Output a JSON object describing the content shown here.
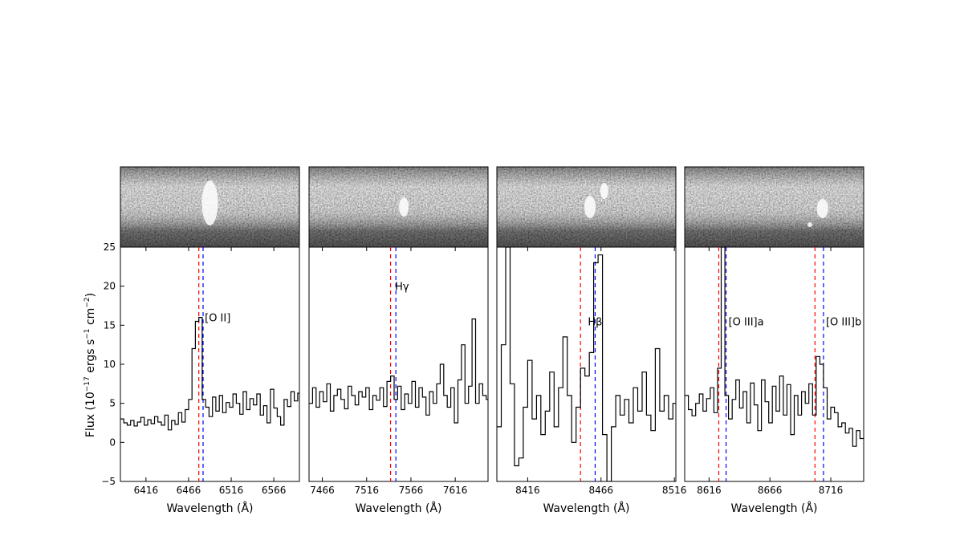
{
  "figure": {
    "ylabel": "Flux (10",
    "ylabel_exp": "−17",
    "ylabel_mid": " ergs s",
    "ylabel_exp2": "−1",
    "ylabel_mid2": " cm",
    "ylabel_exp3": "−2",
    "ylabel_end": ")"
  },
  "chart_data": [
    {
      "type": "line",
      "xlabel": "Wavelength (Å)",
      "ylabel": "Flux (10^-17 ergs s^-1 cm^-2)",
      "xlim": [
        6386,
        6596
      ],
      "ylim": [
        -5,
        25
      ],
      "xticks": [
        6416,
        6466,
        6516,
        6566
      ],
      "yticks": [
        -5,
        0,
        5,
        10,
        15,
        20,
        25
      ],
      "grid": false,
      "vlines": [
        {
          "x": 6478,
          "color": "#ff0000"
        },
        {
          "x": 6483,
          "color": "#0000ff"
        }
      ],
      "annotations": [
        {
          "text": "[O II]",
          "x": 6485,
          "y": 15.5
        }
      ],
      "x": [
        6386,
        6390,
        6394,
        6398,
        6402,
        6406,
        6410,
        6414,
        6418,
        6422,
        6426,
        6430,
        6434,
        6438,
        6442,
        6446,
        6450,
        6454,
        6458,
        6462,
        6466,
        6470,
        6474,
        6478,
        6482,
        6486,
        6490,
        6494,
        6498,
        6502,
        6506,
        6510,
        6514,
        6518,
        6522,
        6526,
        6530,
        6534,
        6538,
        6542,
        6546,
        6550,
        6554,
        6558,
        6562,
        6566,
        6570,
        6574,
        6578,
        6582,
        6586,
        6590,
        6594
      ],
      "y": [
        3,
        2.5,
        2.2,
        2.8,
        2.1,
        2.6,
        3.2,
        2.2,
        2.9,
        2.4,
        3.3,
        2.6,
        2.2,
        3.5,
        1.6,
        2.8,
        2.3,
        3.8,
        2.6,
        4.2,
        5.5,
        12,
        15.5,
        16,
        5.5,
        4.5,
        3.3,
        5.8,
        4,
        6,
        3.8,
        5.1,
        4.5,
        6.2,
        5,
        3.6,
        6.5,
        4.2,
        5.6,
        4.8,
        6.2,
        3.5,
        4.7,
        2.5,
        6.8,
        4.4,
        3.3,
        2.2,
        5.5,
        4.6,
        6.5,
        5.3,
        6.3
      ]
    },
    {
      "type": "line",
      "xlabel": "Wavelength (Å)",
      "xlim": [
        7451,
        7653
      ],
      "ylim": [
        -5,
        25
      ],
      "xticks": [
        7466,
        7516,
        7566,
        7616
      ],
      "grid": false,
      "vlines": [
        {
          "x": 7543,
          "color": "#ff0000"
        },
        {
          "x": 7549,
          "color": "#0000ff"
        }
      ],
      "annotations": [
        {
          "text": "Hγ",
          "x": 7548,
          "y": 19.5
        }
      ],
      "x": [
        7451,
        7455,
        7459,
        7463,
        7467,
        7471,
        7475,
        7479,
        7483,
        7487,
        7491,
        7495,
        7499,
        7503,
        7507,
        7511,
        7515,
        7519,
        7523,
        7527,
        7531,
        7535,
        7539,
        7543,
        7547,
        7551,
        7555,
        7559,
        7563,
        7567,
        7571,
        7575,
        7579,
        7583,
        7587,
        7591,
        7595,
        7599,
        7603,
        7607,
        7611,
        7615,
        7619,
        7623,
        7627,
        7631,
        7635,
        7639,
        7643,
        7647,
        7651
      ],
      "y": [
        5,
        7,
        4.5,
        6.5,
        5.2,
        7.5,
        4,
        6,
        6.8,
        5.5,
        4.3,
        7.2,
        6,
        4.8,
        6.5,
        5.8,
        7,
        4.2,
        6,
        5.4,
        7,
        4.6,
        7.8,
        8.5,
        5.5,
        7.2,
        4.2,
        6.2,
        5,
        7.8,
        4.5,
        7,
        5.8,
        3.5,
        6.5,
        5,
        7.5,
        10,
        6,
        4.5,
        7,
        2.5,
        8,
        12.5,
        5,
        7.2,
        15.8,
        5,
        7.5,
        6,
        5.5
      ]
    },
    {
      "type": "line",
      "xlabel": "Wavelength (Å)",
      "xlim": [
        8395,
        8517
      ],
      "ylim": [
        -5,
        25
      ],
      "xticks": [
        8416,
        8466,
        8516
      ],
      "grid": false,
      "vlines": [
        {
          "x": 8452,
          "color": "#ff0000"
        },
        {
          "x": 8462,
          "color": "#0000ff"
        }
      ],
      "annotations": [
        {
          "text": "Hβ",
          "x": 8457,
          "y": 15
        }
      ],
      "x": [
        8395,
        8398,
        8401,
        8404,
        8407,
        8410,
        8413,
        8416,
        8419,
        8422,
        8425,
        8428,
        8431,
        8434,
        8437,
        8440,
        8443,
        8446,
        8449,
        8452,
        8455,
        8458,
        8461,
        8464,
        8467,
        8470,
        8473,
        8476,
        8479,
        8482,
        8485,
        8488,
        8491,
        8494,
        8497,
        8500,
        8503,
        8506,
        8509,
        8512,
        8515
      ],
      "y": [
        2,
        12.5,
        25,
        7.5,
        -3,
        -2,
        4.5,
        10.5,
        3,
        6,
        1,
        4,
        9,
        2,
        7,
        13.5,
        6,
        0,
        4.5,
        9.5,
        8.5,
        11.5,
        23,
        24,
        1,
        -5,
        2,
        6,
        3.5,
        5.5,
        2.5,
        7,
        4,
        9,
        3.5,
        1.5,
        12,
        4,
        6,
        3,
        5
      ]
    },
    {
      "type": "line",
      "xlabel": "Wavelength (Å)",
      "xlim": [
        8596,
        8743
      ],
      "ylim": [
        -5,
        25
      ],
      "xticks": [
        8616,
        8666,
        8716
      ],
      "grid": false,
      "vlines": [
        {
          "x": 8624,
          "color": "#ff0000"
        },
        {
          "x": 8630,
          "color": "#0000ff"
        },
        {
          "x": 8703,
          "color": "#ff0000"
        },
        {
          "x": 8710,
          "color": "#0000ff"
        }
      ],
      "annotations": [
        {
          "text": "[O III]a",
          "x": 8632,
          "y": 15
        },
        {
          "text": "[O III]b",
          "x": 8712,
          "y": 15
        }
      ],
      "x": [
        8596,
        8599,
        8602,
        8605,
        8608,
        8611,
        8614,
        8617,
        8620,
        8623,
        8626,
        8629,
        8632,
        8635,
        8638,
        8641,
        8644,
        8647,
        8650,
        8653,
        8656,
        8659,
        8662,
        8665,
        8668,
        8671,
        8674,
        8677,
        8680,
        8683,
        8686,
        8689,
        8692,
        8695,
        8698,
        8701,
        8704,
        8707,
        8710,
        8713,
        8716,
        8719,
        8722,
        8725,
        8728,
        8731,
        8734,
        8737,
        8740
      ],
      "y": [
        6,
        4.2,
        3.4,
        5,
        6.2,
        4,
        5.6,
        7,
        3.8,
        9.5,
        25,
        6,
        3,
        5.5,
        8,
        4.4,
        6.5,
        2.5,
        7.6,
        4.8,
        1.5,
        8,
        5.2,
        2.5,
        7.2,
        4,
        8.5,
        3.5,
        7.4,
        1,
        6,
        3.5,
        6.5,
        5,
        7.5,
        3.5,
        11,
        10,
        7,
        3,
        4.5,
        3.8,
        2,
        2.5,
        1.2,
        1.8,
        -0.5,
        1.5,
        0.5
      ]
    }
  ]
}
